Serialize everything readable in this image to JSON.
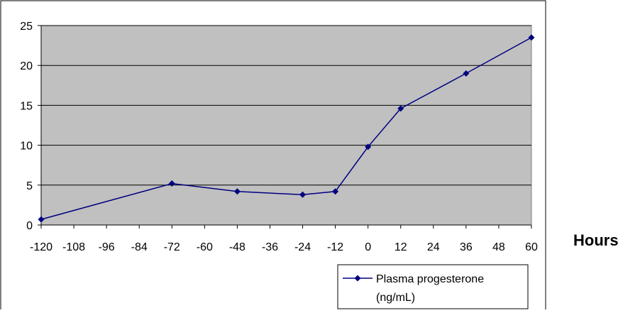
{
  "chart_data": {
    "type": "line",
    "title": "",
    "xlabel": "Hours",
    "ylabel": "",
    "xlim": [
      -120,
      60
    ],
    "ylim": [
      0,
      25
    ],
    "x_ticks": [
      "-120",
      "-108",
      "-96",
      "-84",
      "-72",
      "-60",
      "-48",
      "-36",
      "-24",
      "-12",
      "0",
      "12",
      "24",
      "36",
      "48",
      "60"
    ],
    "y_ticks": [
      "0",
      "5",
      "10",
      "15",
      "20",
      "25"
    ],
    "grid": "horizontal",
    "legend_position": "bottom-right",
    "plot_background": "#c0c0c0",
    "series": [
      {
        "name": "Plasma progesterone (ng/mL)",
        "legend_lines": [
          "Plasma progesterone",
          "(ng/mL)"
        ],
        "color": "#000080",
        "x": [
          -120,
          -72,
          -48,
          -24,
          -12,
          0,
          12,
          36,
          60
        ],
        "y": [
          0.7,
          5.2,
          4.2,
          3.8,
          4.2,
          9.8,
          14.6,
          19.0,
          23.5
        ]
      }
    ]
  }
}
